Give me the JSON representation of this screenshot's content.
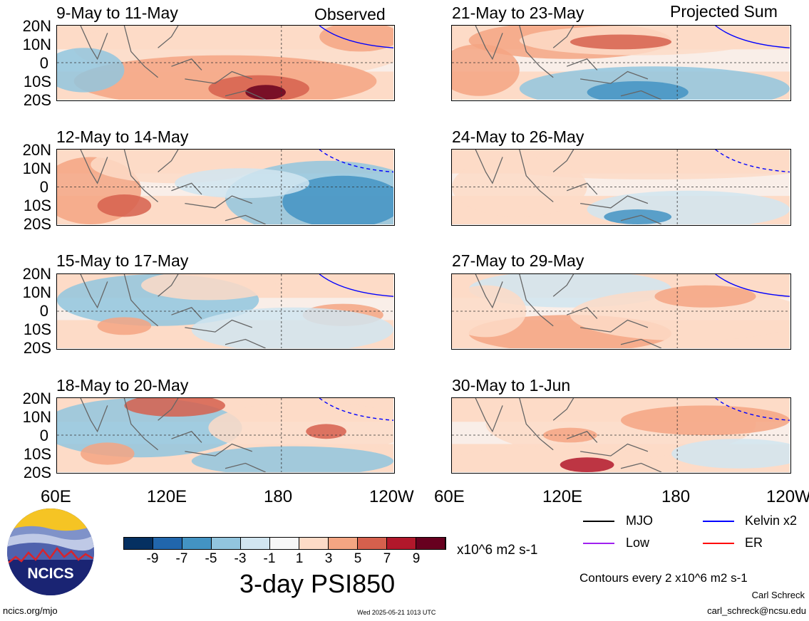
{
  "header": {
    "observed_label": "Observed",
    "projected_label": "Projected Sum"
  },
  "panels_left": [
    {
      "title": "9-May to 11-May"
    },
    {
      "title": "12-May to 14-May"
    },
    {
      "title": "15-May to 17-May"
    },
    {
      "title": "18-May to 20-May"
    }
  ],
  "panels_right": [
    {
      "title": "21-May to 23-May"
    },
    {
      "title": "24-May to 26-May"
    },
    {
      "title": "27-May to 29-May"
    },
    {
      "title": "30-May to 1-Jun"
    }
  ],
  "lat_labels": [
    "20N",
    "10N",
    "0",
    "10S",
    "20S"
  ],
  "lon_labels_left": [
    "60E",
    "120E",
    "180",
    "120W"
  ],
  "lon_labels_right": [
    "60E",
    "120E",
    "180",
    "120W"
  ],
  "colorbar": {
    "ticks": [
      "-9",
      "-7",
      "-5",
      "-3",
      "-1",
      "1",
      "3",
      "5",
      "7",
      "9"
    ],
    "colors": [
      "#053061",
      "#2166ac",
      "#4393c3",
      "#92c5de",
      "#d1e5f0",
      "#f7f7f7",
      "#fddbc7",
      "#f4a582",
      "#d6604d",
      "#b2182b",
      "#67001f"
    ],
    "unit": "x10^6 m2 s-1"
  },
  "variable_title": "3-day PSI850",
  "legend": [
    {
      "label": "MJO",
      "color": "#000000"
    },
    {
      "label": "Kelvin x2",
      "color": "#0000ff"
    },
    {
      "label": "Low",
      "color": "#a020f0"
    },
    {
      "label": "ER",
      "color": "#ff0000"
    }
  ],
  "contours_note": "Contours every 2 x10^6 m2 s-1",
  "author": "Carl Schreck",
  "email": "carl_schreck@ncsu.edu",
  "site": "ncics.org/mjo",
  "timestamp": "Wed 2025-05-21 1013 UTC",
  "logo_text": "NCICS"
}
